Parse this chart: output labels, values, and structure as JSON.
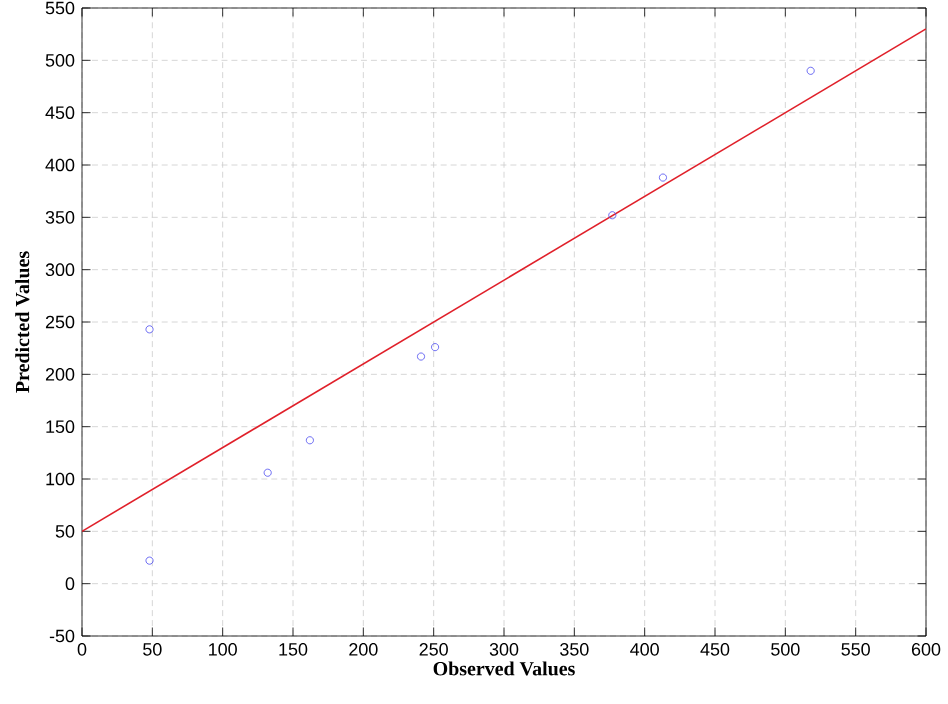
{
  "chart_data": {
    "type": "scatter",
    "xlabel": "Observed Values",
    "ylabel": "Predicted Values",
    "xlim": [
      0,
      600
    ],
    "ylim": [
      -50,
      550
    ],
    "xticks": [
      0,
      50,
      100,
      150,
      200,
      250,
      300,
      350,
      400,
      450,
      500,
      550,
      600
    ],
    "yticks": [
      -50,
      0,
      50,
      100,
      150,
      200,
      250,
      300,
      350,
      400,
      450,
      500,
      550
    ],
    "grid": true,
    "series": [
      {
        "color": "#4a4af0",
        "marker": "circle",
        "x": [
          48,
          48,
          132,
          162,
          241,
          251,
          377,
          413,
          518
        ],
        "values": [
          22,
          243,
          106,
          137,
          217,
          226,
          352,
          388,
          490
        ]
      },
      {
        "type": "line",
        "color": "#e0202a",
        "marker": "none",
        "line_style": "solid",
        "x": [
          0,
          600
        ],
        "values": [
          50,
          530
        ]
      }
    ]
  }
}
